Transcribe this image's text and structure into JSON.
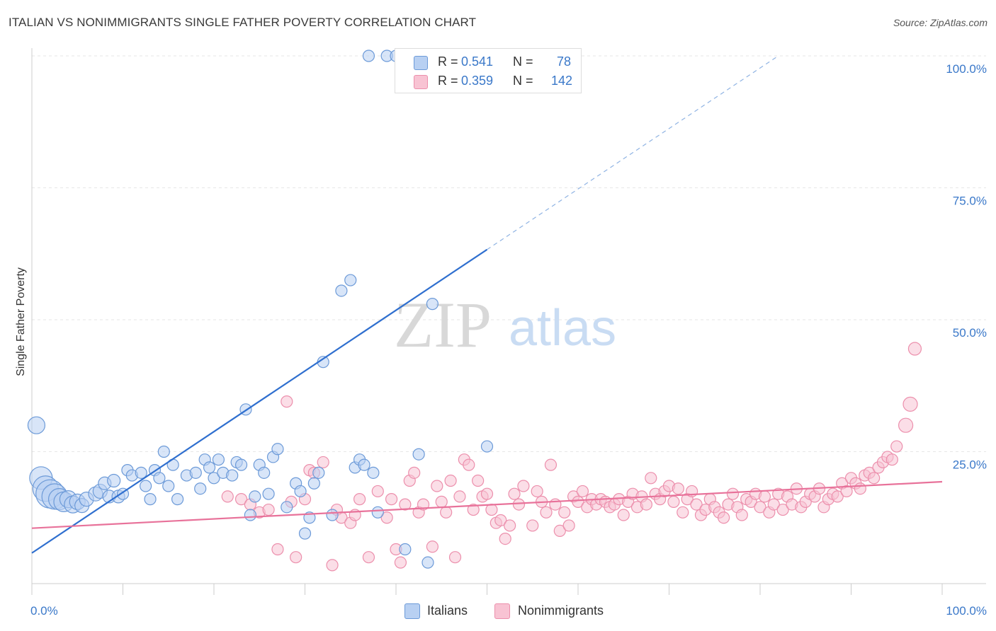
{
  "title": "ITALIAN VS NONIMMIGRANTS SINGLE FATHER POVERTY CORRELATION CHART",
  "source": "Source: ZipAtlas.com",
  "watermark": {
    "zip": "ZIP",
    "atlas": "atlas"
  },
  "legend": {
    "rows": [
      {
        "r_label": "R =",
        "r_value": "0.541",
        "n_label": "N =",
        "n_value": "78"
      },
      {
        "r_label": "R =",
        "r_value": "0.359",
        "n_label": "N =",
        "n_value": "142"
      }
    ]
  },
  "bottom_legend": {
    "italians": "Italians",
    "nonimmigrants": "Nonimmigrants"
  },
  "colors": {
    "italians_fill": "#b8d0f2",
    "italians_stroke": "#6c9ad8",
    "italians_line": "#2f6fcf",
    "nonimmigrants_fill": "#f8c3d3",
    "nonimmigrants_stroke": "#ec8fac",
    "nonimmigrants_line": "#e8729a",
    "axis_label": "#3a78c9",
    "grid": "#e6e6e6"
  },
  "chart_data": {
    "type": "scatter",
    "title": "ITALIAN VS NONIMMIGRANTS SINGLE FATHER POVERTY CORRELATION CHART",
    "xlabel": "",
    "ylabel": "Single Father Poverty",
    "xlim": [
      0,
      100
    ],
    "ylim": [
      0,
      100
    ],
    "x_tick_labels": [
      "0.0%",
      "100.0%"
    ],
    "y_ticks": [
      25,
      50,
      75,
      100
    ],
    "y_tick_labels": [
      "25.0%",
      "50.0%",
      "75.0%",
      "100.0%"
    ],
    "grid": true,
    "legend_position": "top-center",
    "series": [
      {
        "name": "Italians",
        "R": 0.541,
        "N": 78,
        "trend": {
          "x0": 0,
          "y0": 5.8,
          "x1": 50,
          "y1": 63.3,
          "dashed_to_x": 82,
          "dashed_to_y": 100
        },
        "points": [
          [
            0.5,
            30,
            12
          ],
          [
            1,
            20,
            16
          ],
          [
            1.5,
            18,
            18
          ],
          [
            2,
            17,
            20
          ],
          [
            2.5,
            16.5,
            18
          ],
          [
            3,
            16,
            15
          ],
          [
            3.5,
            15.5,
            14
          ],
          [
            4,
            16,
            12
          ],
          [
            4.5,
            15,
            12
          ],
          [
            5,
            15.5,
            11
          ],
          [
            5.5,
            14.8,
            10
          ],
          [
            6,
            16,
            10
          ],
          [
            7,
            17,
            10
          ],
          [
            7.5,
            17.5,
            10
          ],
          [
            8,
            19,
            9
          ],
          [
            8.5,
            16.5,
            9
          ],
          [
            9,
            19.5,
            9
          ],
          [
            9.5,
            16.5,
            9
          ],
          [
            10,
            17,
            8
          ],
          [
            10.5,
            21.5,
            8
          ],
          [
            11,
            20.5,
            8
          ],
          [
            12,
            21,
            8
          ],
          [
            12.5,
            18.5,
            8
          ],
          [
            13,
            16,
            8
          ],
          [
            13.5,
            21.5,
            8
          ],
          [
            14,
            20,
            8
          ],
          [
            14.5,
            25,
            8
          ],
          [
            15,
            18.5,
            8
          ],
          [
            15.5,
            22.5,
            8
          ],
          [
            16,
            16,
            8
          ],
          [
            17,
            20.5,
            8
          ],
          [
            18,
            21,
            8
          ],
          [
            18.5,
            18,
            8
          ],
          [
            19,
            23.5,
            8
          ],
          [
            19.5,
            22,
            8
          ],
          [
            20,
            20,
            8
          ],
          [
            20.5,
            23.5,
            8
          ],
          [
            21,
            21,
            8
          ],
          [
            22,
            20.5,
            8
          ],
          [
            22.5,
            23,
            8
          ],
          [
            23,
            22.5,
            8
          ],
          [
            23.5,
            33,
            8
          ],
          [
            24,
            13,
            8
          ],
          [
            24.5,
            16.5,
            8
          ],
          [
            25,
            22.5,
            8
          ],
          [
            25.5,
            21,
            8
          ],
          [
            26,
            17,
            8
          ],
          [
            26.5,
            24,
            8
          ],
          [
            27,
            25.5,
            8
          ],
          [
            28,
            14.5,
            8
          ],
          [
            29,
            19,
            8
          ],
          [
            29.5,
            17.5,
            8
          ],
          [
            30,
            9.5,
            8
          ],
          [
            30.5,
            12.5,
            8
          ],
          [
            31,
            19,
            8
          ],
          [
            31.5,
            21,
            8
          ],
          [
            32,
            42,
            8
          ],
          [
            33,
            13,
            8
          ],
          [
            34,
            55.5,
            8
          ],
          [
            35,
            57.5,
            8
          ],
          [
            35.5,
            22,
            8
          ],
          [
            36,
            23.5,
            8
          ],
          [
            36.5,
            22.5,
            8
          ],
          [
            37,
            100,
            8
          ],
          [
            37.5,
            21,
            8
          ],
          [
            38,
            13.5,
            8
          ],
          [
            39,
            100,
            8
          ],
          [
            40,
            100,
            8
          ],
          [
            41,
            6.5,
            8
          ],
          [
            42,
            100,
            8
          ],
          [
            42.5,
            24.5,
            8
          ],
          [
            43.5,
            4,
            8
          ],
          [
            44,
            53,
            8
          ],
          [
            47,
            94.5,
            8
          ],
          [
            49,
            100,
            8
          ],
          [
            50,
            26,
            8
          ],
          [
            51,
            100,
            8
          ],
          [
            52,
            100,
            8
          ]
        ]
      },
      {
        "name": "Nonimmigrants",
        "R": 0.359,
        "N": 142,
        "trend": {
          "x0": 0,
          "y0": 10.5,
          "x1": 100,
          "y1": 19.3
        },
        "points": [
          [
            21.5,
            16.5,
            8
          ],
          [
            23,
            16,
            8
          ],
          [
            24,
            15,
            8
          ],
          [
            25,
            13.5,
            8
          ],
          [
            26,
            14,
            8
          ],
          [
            27,
            6.5,
            8
          ],
          [
            28,
            34.5,
            8
          ],
          [
            28.5,
            15.5,
            8
          ],
          [
            29,
            5,
            8
          ],
          [
            30,
            16,
            8
          ],
          [
            30.5,
            21.5,
            8
          ],
          [
            31,
            21,
            8
          ],
          [
            32,
            23,
            8
          ],
          [
            33,
            3.5,
            8
          ],
          [
            33.5,
            14,
            8
          ],
          [
            34,
            12.5,
            8
          ],
          [
            35,
            11.5,
            8
          ],
          [
            35.5,
            13,
            8
          ],
          [
            36,
            16,
            8
          ],
          [
            37,
            5,
            8
          ],
          [
            38,
            17.5,
            8
          ],
          [
            39,
            12.5,
            8
          ],
          [
            39.5,
            16,
            8
          ],
          [
            40,
            6.5,
            8
          ],
          [
            40.5,
            4,
            8
          ],
          [
            41,
            15,
            8
          ],
          [
            41.5,
            19.5,
            8
          ],
          [
            42,
            21,
            8
          ],
          [
            42.5,
            13.5,
            8
          ],
          [
            43,
            15,
            8
          ],
          [
            44,
            7,
            8
          ],
          [
            44.5,
            18.5,
            8
          ],
          [
            45,
            15.5,
            8
          ],
          [
            45.5,
            13.5,
            8
          ],
          [
            46,
            19.5,
            8
          ],
          [
            46.5,
            5,
            8
          ],
          [
            47,
            16.5,
            8
          ],
          [
            47.5,
            23.5,
            8
          ],
          [
            48,
            22.5,
            8
          ],
          [
            48.5,
            14,
            8
          ],
          [
            49,
            19.5,
            8
          ],
          [
            49.5,
            16.5,
            8
          ],
          [
            50,
            17,
            8
          ],
          [
            50.5,
            14,
            8
          ],
          [
            51,
            11.5,
            8
          ],
          [
            51.5,
            12,
            8
          ],
          [
            52,
            8.5,
            8
          ],
          [
            52.5,
            11,
            8
          ],
          [
            53,
            17,
            8
          ],
          [
            53.5,
            15,
            8
          ],
          [
            54,
            18.5,
            8
          ],
          [
            55,
            11,
            8
          ],
          [
            55.5,
            17.5,
            8
          ],
          [
            56,
            15.5,
            8
          ],
          [
            56.5,
            13.5,
            8
          ],
          [
            57,
            22.5,
            8
          ],
          [
            57.5,
            15,
            8
          ],
          [
            58,
            10,
            8
          ],
          [
            58.5,
            13.5,
            8
          ],
          [
            59,
            11,
            8
          ],
          [
            59.5,
            16.5,
            8
          ],
          [
            60,
            15.5,
            8
          ],
          [
            60.5,
            17.5,
            8
          ],
          [
            61,
            14.5,
            8
          ],
          [
            61.5,
            16,
            8
          ],
          [
            62,
            15,
            8
          ],
          [
            62.5,
            16,
            8
          ],
          [
            63,
            15.5,
            8
          ],
          [
            63.5,
            14.5,
            8
          ],
          [
            64,
            15,
            8
          ],
          [
            64.5,
            16,
            8
          ],
          [
            65,
            13,
            8
          ],
          [
            65.5,
            15.5,
            8
          ],
          [
            66,
            17,
            8
          ],
          [
            66.5,
            14.5,
            8
          ],
          [
            67,
            16.5,
            8
          ],
          [
            67.5,
            15,
            8
          ],
          [
            68,
            20,
            8
          ],
          [
            68.5,
            17,
            8
          ],
          [
            69,
            16,
            8
          ],
          [
            69.5,
            17.5,
            8
          ],
          [
            70,
            18.5,
            8
          ],
          [
            70.5,
            15.5,
            8
          ],
          [
            71,
            18,
            8
          ],
          [
            71.5,
            13.5,
            8
          ],
          [
            72,
            16,
            8
          ],
          [
            72.5,
            17.5,
            8
          ],
          [
            73,
            15,
            8
          ],
          [
            73.5,
            13,
            8
          ],
          [
            74,
            14,
            8
          ],
          [
            74.5,
            16,
            8
          ],
          [
            75,
            14.5,
            8
          ],
          [
            75.5,
            13.5,
            8
          ],
          [
            76,
            12.5,
            8
          ],
          [
            76.5,
            15,
            8
          ],
          [
            77,
            17,
            8
          ],
          [
            77.5,
            14.5,
            8
          ],
          [
            78,
            13,
            8
          ],
          [
            78.5,
            16,
            8
          ],
          [
            79,
            15.5,
            8
          ],
          [
            79.5,
            17,
            8
          ],
          [
            80,
            14.5,
            8
          ],
          [
            80.5,
            16.5,
            8
          ],
          [
            81,
            13.5,
            8
          ],
          [
            81.5,
            15,
            8
          ],
          [
            82,
            17,
            8
          ],
          [
            82.5,
            14,
            8
          ],
          [
            83,
            16.5,
            8
          ],
          [
            83.5,
            15,
            8
          ],
          [
            84,
            18,
            8
          ],
          [
            84.5,
            14.5,
            8
          ],
          [
            85,
            15.5,
            8
          ],
          [
            85.5,
            17,
            8
          ],
          [
            86,
            16.5,
            8
          ],
          [
            86.5,
            18,
            8
          ],
          [
            87,
            14.5,
            8
          ],
          [
            87.5,
            16,
            8
          ],
          [
            88,
            17,
            8
          ],
          [
            88.5,
            16.5,
            8
          ],
          [
            89,
            19,
            8
          ],
          [
            89.5,
            17.5,
            8
          ],
          [
            90,
            20,
            8
          ],
          [
            90.5,
            19,
            8
          ],
          [
            91,
            18,
            8
          ],
          [
            91.5,
            20.5,
            8
          ],
          [
            92,
            21,
            8
          ],
          [
            92.5,
            20,
            8
          ],
          [
            93,
            22,
            8
          ],
          [
            93.5,
            23,
            8
          ],
          [
            94,
            24,
            8
          ],
          [
            94.5,
            23.5,
            8
          ],
          [
            95,
            26,
            8
          ],
          [
            96,
            30,
            10
          ],
          [
            96.5,
            34,
            10
          ],
          [
            97,
            44.5,
            9
          ],
          [
            20,
            20,
            0
          ]
        ]
      }
    ]
  }
}
